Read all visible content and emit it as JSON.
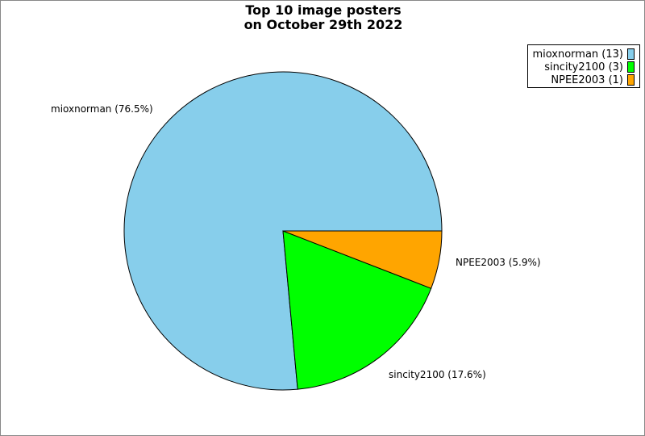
{
  "chart_data": {
    "type": "pie",
    "title_lines": [
      "Top 10 image posters",
      "on October 29th 2022"
    ],
    "slices": [
      {
        "name": "mioxnorman",
        "value": 13,
        "percent": 76.5,
        "color": "#87CEEB",
        "label": "mioxnorman (76.5%)",
        "legend": "mioxnorman (13)"
      },
      {
        "name": "sincity2100",
        "value": 3,
        "percent": 17.6,
        "color": "#00FF00",
        "label": "sincity2100 (17.6%)",
        "legend": "sincity2100 (3)"
      },
      {
        "name": "NPEE2003",
        "value": 1,
        "percent": 5.9,
        "color": "#FFA500",
        "label": "NPEE2003 (5.9%)",
        "legend": "NPEE2003 (1)"
      }
    ],
    "legend_placement": "top-right"
  }
}
